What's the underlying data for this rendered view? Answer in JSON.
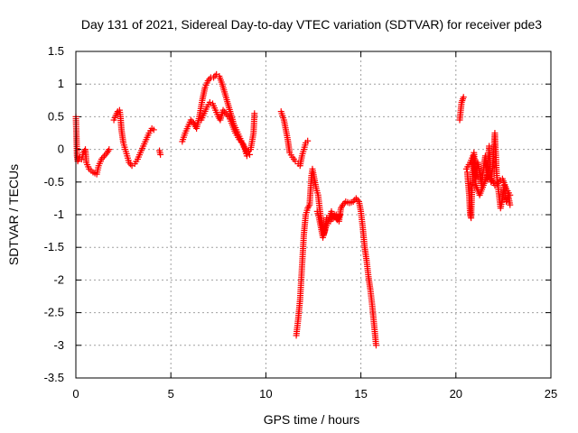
{
  "chart_data": {
    "type": "scatter",
    "title": "Day 131 of 2021, Sidereal Day-to-day VTEC variation (SDTVAR) for receiver pde3",
    "xlabel": "GPS time / hours",
    "ylabel": "SDTVAR / TECUs",
    "xlim": [
      0,
      25
    ],
    "ylim": [
      -3.5,
      1.5
    ],
    "x_ticks": [
      0,
      5,
      10,
      15,
      20,
      25
    ],
    "y_ticks": [
      1.5,
      1,
      0.5,
      0,
      -0.5,
      -1,
      -1.5,
      -2,
      -2.5,
      -3,
      -3.5
    ],
    "x_tick_labels": [
      "0",
      "5",
      "10",
      "15",
      "20",
      "25"
    ],
    "y_tick_labels": [
      "1.5",
      "1",
      "0.5",
      "0",
      "-0.5",
      "-1",
      "-1.5",
      "-2",
      "-2.5",
      "-3",
      "-3.5"
    ],
    "grid": true,
    "marker": "+",
    "color": "#ff0000",
    "series": [
      {
        "name": "SDTVAR",
        "segments": [
          [
            [
              0.0,
              0.5
            ],
            [
              0.03,
              0.22
            ],
            [
              0.06,
              -0.1
            ],
            [
              0.1,
              -0.18
            ],
            [
              0.2,
              -0.12
            ],
            [
              0.3,
              -0.15
            ],
            [
              0.4,
              -0.05
            ],
            [
              0.5,
              0.0
            ],
            [
              0.55,
              -0.2
            ],
            [
              0.7,
              -0.3
            ],
            [
              0.9,
              -0.35
            ],
            [
              1.1,
              -0.38
            ],
            [
              1.2,
              -0.25
            ],
            [
              1.35,
              -0.15
            ],
            [
              1.5,
              -0.1
            ],
            [
              1.65,
              -0.05
            ],
            [
              1.75,
              0.0
            ]
          ],
          [
            [
              2.0,
              0.45
            ],
            [
              2.1,
              0.52
            ],
            [
              2.2,
              0.58
            ],
            [
              2.3,
              0.6
            ],
            [
              2.35,
              0.5
            ],
            [
              2.4,
              0.3
            ],
            [
              2.5,
              0.1
            ],
            [
              2.6,
              0.0
            ],
            [
              2.7,
              -0.1
            ],
            [
              2.8,
              -0.2
            ],
            [
              2.95,
              -0.25
            ],
            [
              3.1,
              -0.22
            ],
            [
              3.25,
              -0.15
            ],
            [
              3.4,
              -0.05
            ],
            [
              3.55,
              0.05
            ],
            [
              3.7,
              0.15
            ],
            [
              3.85,
              0.25
            ],
            [
              4.0,
              0.32
            ],
            [
              4.1,
              0.3
            ]
          ],
          [
            [
              4.4,
              -0.02
            ],
            [
              4.45,
              -0.08
            ]
          ],
          [
            [
              5.6,
              0.12
            ],
            [
              5.75,
              0.25
            ],
            [
              5.9,
              0.35
            ],
            [
              6.05,
              0.45
            ],
            [
              6.2,
              0.4
            ],
            [
              6.35,
              0.32
            ],
            [
              6.5,
              0.5
            ],
            [
              6.65,
              0.75
            ],
            [
              6.8,
              0.95
            ],
            [
              6.95,
              1.05
            ],
            [
              7.1,
              1.1
            ],
            [
              7.25,
              1.1
            ],
            [
              7.4,
              1.15
            ],
            [
              7.55,
              1.12
            ],
            [
              7.7,
              1.0
            ],
            [
              7.85,
              0.85
            ],
            [
              8.0,
              0.7
            ],
            [
              8.15,
              0.55
            ],
            [
              8.3,
              0.4
            ],
            [
              8.45,
              0.3
            ],
            [
              8.6,
              0.2
            ],
            [
              8.75,
              0.1
            ],
            [
              8.9,
              0.0
            ],
            [
              9.0,
              -0.1
            ],
            [
              9.15,
              -0.08
            ]
          ],
          [
            [
              6.6,
              0.45
            ],
            [
              6.75,
              0.55
            ],
            [
              6.9,
              0.65
            ],
            [
              7.05,
              0.72
            ],
            [
              7.2,
              0.7
            ],
            [
              7.35,
              0.6
            ],
            [
              7.5,
              0.5
            ],
            [
              7.6,
              0.45
            ],
            [
              7.75,
              0.6
            ],
            [
              7.9,
              0.55
            ],
            [
              8.05,
              0.5
            ],
            [
              8.2,
              0.4
            ],
            [
              8.4,
              0.25
            ],
            [
              8.6,
              0.15
            ],
            [
              8.8,
              0.08
            ],
            [
              9.0,
              -0.05
            ],
            [
              9.2,
              0.0
            ],
            [
              9.35,
              0.25
            ],
            [
              9.4,
              0.55
            ]
          ],
          [
            [
              10.8,
              0.58
            ],
            [
              10.95,
              0.45
            ],
            [
              11.05,
              0.3
            ],
            [
              11.15,
              0.15
            ],
            [
              11.25,
              -0.05
            ],
            [
              11.4,
              -0.12
            ],
            [
              11.55,
              -0.18
            ],
            [
              11.7,
              -0.22
            ],
            [
              11.8,
              -0.25
            ],
            [
              11.9,
              -0.1
            ],
            [
              12.0,
              0.0
            ],
            [
              12.1,
              0.1
            ],
            [
              12.2,
              0.13
            ]
          ],
          [
            [
              11.6,
              -2.85
            ],
            [
              11.7,
              -2.6
            ],
            [
              11.8,
              -2.3
            ],
            [
              11.9,
              -1.8
            ],
            [
              12.0,
              -1.3
            ],
            [
              12.1,
              -1.0
            ],
            [
              12.2,
              -0.9
            ],
            [
              12.3,
              -0.85
            ],
            [
              12.4,
              -0.4
            ],
            [
              12.45,
              -0.3
            ],
            [
              12.55,
              -0.45
            ],
            [
              12.65,
              -0.6
            ],
            [
              12.75,
              -0.7
            ],
            [
              12.85,
              -0.95
            ],
            [
              12.95,
              -1.15
            ],
            [
              13.05,
              -1.3
            ],
            [
              13.15,
              -1.2
            ],
            [
              13.3,
              -1.1
            ],
            [
              13.45,
              -0.95
            ],
            [
              13.55,
              -1.05
            ],
            [
              13.7,
              -1.0
            ],
            [
              13.85,
              -1.1
            ],
            [
              13.95,
              -0.9
            ],
            [
              14.05,
              -0.85
            ],
            [
              14.2,
              -0.8
            ],
            [
              14.4,
              -0.82
            ],
            [
              14.6,
              -0.8
            ],
            [
              14.75,
              -0.75
            ],
            [
              14.9,
              -0.8
            ],
            [
              15.0,
              -0.95
            ],
            [
              15.1,
              -1.2
            ],
            [
              15.2,
              -1.5
            ],
            [
              15.3,
              -1.7
            ],
            [
              15.4,
              -1.95
            ],
            [
              15.5,
              -2.15
            ],
            [
              15.6,
              -2.4
            ],
            [
              15.7,
              -2.7
            ],
            [
              15.8,
              -3.0
            ]
          ],
          [
            [
              12.7,
              -0.95
            ],
            [
              12.8,
              -1.05
            ],
            [
              12.9,
              -1.2
            ],
            [
              13.0,
              -1.35
            ],
            [
              13.1,
              -1.25
            ],
            [
              13.2,
              -1.05
            ],
            [
              13.4,
              -1.1
            ],
            [
              13.6,
              -1.0
            ],
            [
              13.75,
              -1.08
            ],
            [
              13.9,
              -1.0
            ]
          ],
          [
            [
              20.2,
              0.45
            ],
            [
              20.3,
              0.72
            ],
            [
              20.4,
              0.8
            ]
          ],
          [
            [
              20.6,
              -0.35
            ],
            [
              20.7,
              -0.7
            ],
            [
              20.75,
              -1.0
            ],
            [
              20.8,
              -1.05
            ],
            [
              20.85,
              -0.6
            ],
            [
              20.95,
              -0.05
            ],
            [
              21.05,
              -0.45
            ],
            [
              21.15,
              -0.2
            ],
            [
              21.25,
              -0.35
            ],
            [
              21.35,
              -0.55
            ],
            [
              21.45,
              -0.3
            ],
            [
              21.55,
              -0.1
            ],
            [
              21.65,
              -0.45
            ],
            [
              21.75,
              0.05
            ],
            [
              21.85,
              -0.5
            ],
            [
              21.95,
              -0.2
            ],
            [
              22.05,
              0.25
            ],
            [
              22.15,
              -0.4
            ],
            [
              22.25,
              -0.65
            ],
            [
              22.35,
              -0.9
            ],
            [
              22.45,
              -0.75
            ],
            [
              22.55,
              -0.55
            ],
            [
              22.65,
              -0.8
            ],
            [
              22.75,
              -0.7
            ],
            [
              22.85,
              -0.85
            ]
          ],
          [
            [
              20.55,
              -0.3
            ],
            [
              20.75,
              -0.2
            ],
            [
              20.9,
              -0.1
            ],
            [
              21.05,
              -0.55
            ],
            [
              21.25,
              -0.7
            ],
            [
              21.45,
              -0.55
            ],
            [
              21.65,
              -0.4
            ],
            [
              21.85,
              -0.45
            ],
            [
              22.05,
              -0.55
            ],
            [
              22.25,
              -0.5
            ],
            [
              22.45,
              -0.45
            ],
            [
              22.65,
              -0.6
            ],
            [
              22.85,
              -0.7
            ]
          ]
        ]
      }
    ]
  }
}
